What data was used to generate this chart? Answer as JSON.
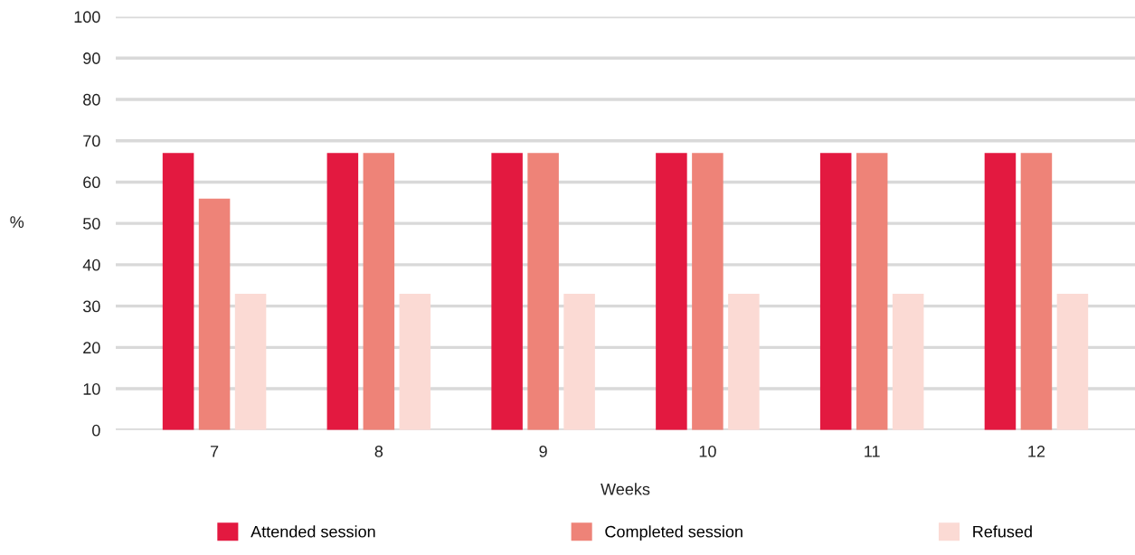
{
  "chart_data": {
    "type": "bar",
    "xlabel": "Weeks",
    "ylabel": "%",
    "categories": [
      "7",
      "8",
      "9",
      "10",
      "11",
      "12"
    ],
    "series": [
      {
        "name": "Attended session",
        "color": "#e31940",
        "values": [
          67,
          67,
          67,
          67,
          67,
          67
        ]
      },
      {
        "name": "Completed session",
        "color": "#ee8378",
        "values": [
          56,
          67,
          67,
          67,
          67,
          67
        ]
      },
      {
        "name": "Refused",
        "color": "#fbdad4",
        "values": [
          33,
          33,
          33,
          33,
          33,
          33
        ]
      }
    ],
    "ylim": [
      0,
      100
    ],
    "yticks": [
      0,
      10,
      20,
      30,
      40,
      50,
      60,
      70,
      80,
      90,
      100
    ],
    "grid": "y",
    "legend": "bottom"
  }
}
